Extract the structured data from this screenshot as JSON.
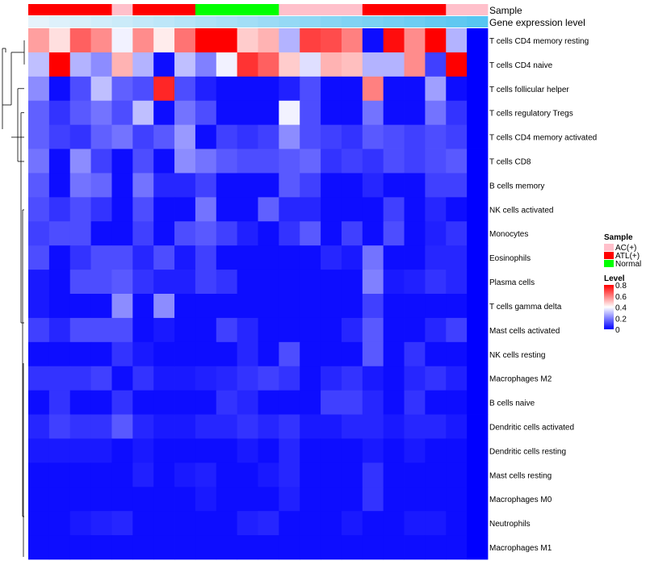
{
  "chart_data": {
    "type": "heatmap",
    "annotation_titles": {
      "sample": "Sample",
      "expression": "Gene expression level"
    },
    "sample_groups": [
      "ATL(+)",
      "ATL(+)",
      "ATL(+)",
      "ATL(+)",
      "AC(+)",
      "ATL(+)",
      "ATL(+)",
      "ATL(+)",
      "Normal",
      "Normal",
      "Normal",
      "Normal",
      "AC(+)",
      "AC(+)",
      "AC(+)",
      "AC(+)",
      "ATL(+)",
      "ATL(+)",
      "ATL(+)",
      "ATL(+)",
      "AC(+)",
      "AC(+)"
    ],
    "expression_level": [
      0.05,
      0.1,
      0.14,
      0.18,
      0.22,
      0.27,
      0.31,
      0.35,
      0.4,
      0.44,
      0.48,
      0.52,
      0.56,
      0.6,
      0.65,
      0.69,
      0.73,
      0.77,
      0.81,
      0.86,
      0.9,
      0.95
    ],
    "rows": [
      "T cells CD4 memory resting",
      "T cells CD4 naive",
      "T cells follicular helper",
      "T cells regulatory  Tregs",
      "T cells CD4 memory activated",
      "T cells CD8",
      "B cells memory",
      "NK cells activated",
      "Monocytes",
      "Eosinophils",
      "Plasma cells",
      "T cells gamma delta",
      "Mast cells activated",
      "NK cells resting",
      "Macrophages M2",
      "B cells naive",
      "Dendritic cells activated",
      "Dendritic cells resting",
      "Mast cells resting",
      "Macrophages M0",
      "Neutrophils",
      "Macrophages M1"
    ],
    "values": [
      [
        0.55,
        0.45,
        0.65,
        0.58,
        0.38,
        0.58,
        0.43,
        0.62,
        0.8,
        0.8,
        0.48,
        0.52,
        0.28,
        0.7,
        0.68,
        0.6,
        0.02,
        0.78,
        0.58,
        0.8,
        0.28,
        0
      ],
      [
        0.3,
        0.8,
        0.28,
        0.22,
        0.52,
        0.28,
        0.02,
        0.3,
        0.2,
        0.38,
        0.72,
        0.65,
        0.48,
        0.35,
        0.52,
        0.5,
        0.28,
        0.28,
        0.58,
        0.1,
        0.8,
        0
      ],
      [
        0.22,
        0.02,
        0.12,
        0.3,
        0.15,
        0.12,
        0.74,
        0.12,
        0.05,
        0.02,
        0.02,
        0.02,
        0.05,
        0.12,
        0.02,
        0.02,
        0.6,
        0.02,
        0.02,
        0.25,
        0.02,
        0
      ],
      [
        0.15,
        0.08,
        0.14,
        0.18,
        0.12,
        0.3,
        0.02,
        0.18,
        0.12,
        0.02,
        0.02,
        0.02,
        0.38,
        0.12,
        0.02,
        0.02,
        0.18,
        0.02,
        0.02,
        0.18,
        0.08,
        0
      ],
      [
        0.15,
        0.1,
        0.08,
        0.15,
        0.18,
        0.1,
        0.14,
        0.24,
        0.02,
        0.1,
        0.08,
        0.1,
        0.22,
        0.12,
        0.1,
        0.08,
        0.14,
        0.12,
        0.1,
        0.12,
        0.1,
        0
      ],
      [
        0.18,
        0.02,
        0.22,
        0.1,
        0.02,
        0.12,
        0.02,
        0.22,
        0.18,
        0.14,
        0.12,
        0.12,
        0.14,
        0.16,
        0.08,
        0.1,
        0.08,
        0.12,
        0.1,
        0.12,
        0.14,
        0
      ],
      [
        0.14,
        0.02,
        0.18,
        0.16,
        0.02,
        0.18,
        0.06,
        0.06,
        0.1,
        0.02,
        0.02,
        0.02,
        0.14,
        0.1,
        0.02,
        0.02,
        0.06,
        0.02,
        0.02,
        0.1,
        0.1,
        0
      ],
      [
        0.12,
        0.08,
        0.12,
        0.08,
        0.02,
        0.12,
        0.02,
        0.02,
        0.18,
        0.02,
        0.02,
        0.15,
        0.06,
        0.06,
        0.02,
        0.02,
        0.02,
        0.1,
        0.02,
        0.06,
        0.02,
        0
      ],
      [
        0.1,
        0.12,
        0.12,
        0.02,
        0.02,
        0.1,
        0.02,
        0.12,
        0.14,
        0.1,
        0.05,
        0.02,
        0.08,
        0.14,
        0.02,
        0.1,
        0.02,
        0.12,
        0.02,
        0.05,
        0.08,
        0
      ],
      [
        0.12,
        0.02,
        0.08,
        0.12,
        0.12,
        0.06,
        0.12,
        0.04,
        0.1,
        0.02,
        0.02,
        0.02,
        0.02,
        0.02,
        0.06,
        0.04,
        0.18,
        0.02,
        0.02,
        0.06,
        0.06,
        0
      ],
      [
        0.04,
        0.02,
        0.12,
        0.12,
        0.14,
        0.08,
        0.05,
        0.05,
        0.1,
        0.08,
        0.02,
        0.02,
        0.02,
        0.02,
        0.02,
        0.02,
        0.2,
        0.04,
        0.05,
        0.08,
        0.06,
        0
      ],
      [
        0.04,
        0.02,
        0.02,
        0.02,
        0.22,
        0.02,
        0.22,
        0.02,
        0.02,
        0.02,
        0.02,
        0.02,
        0.02,
        0.02,
        0.02,
        0.02,
        0.1,
        0.02,
        0.02,
        0.02,
        0.02,
        0
      ],
      [
        0.1,
        0.06,
        0.12,
        0.12,
        0.12,
        0.02,
        0.04,
        0.02,
        0.02,
        0.1,
        0.06,
        0.02,
        0.02,
        0.02,
        0.02,
        0.06,
        0.14,
        0.02,
        0.02,
        0.06,
        0.1,
        0
      ],
      [
        0.02,
        0.02,
        0.02,
        0.02,
        0.08,
        0.04,
        0.02,
        0.02,
        0.02,
        0.02,
        0.06,
        0.02,
        0.12,
        0.02,
        0.02,
        0.02,
        0.14,
        0.02,
        0.08,
        0.02,
        0.02,
        0
      ],
      [
        0.08,
        0.08,
        0.08,
        0.1,
        0.02,
        0.08,
        0.04,
        0.04,
        0.05,
        0.06,
        0.08,
        0.1,
        0.08,
        0.02,
        0.06,
        0.08,
        0.04,
        0.02,
        0.06,
        0.08,
        0.05,
        0
      ],
      [
        0.02,
        0.08,
        0.02,
        0.02,
        0.08,
        0.02,
        0.02,
        0.02,
        0.02,
        0.08,
        0.06,
        0.02,
        0.02,
        0.02,
        0.1,
        0.1,
        0.06,
        0.02,
        0.08,
        0.02,
        0.02,
        0
      ],
      [
        0.06,
        0.1,
        0.08,
        0.08,
        0.14,
        0.06,
        0.04,
        0.04,
        0.06,
        0.06,
        0.08,
        0.06,
        0.08,
        0.04,
        0.04,
        0.06,
        0.06,
        0.04,
        0.06,
        0.06,
        0.04,
        0
      ],
      [
        0.04,
        0.04,
        0.04,
        0.04,
        0.02,
        0.04,
        0.02,
        0.02,
        0.02,
        0.02,
        0.04,
        0.02,
        0.06,
        0.02,
        0.02,
        0.02,
        0.04,
        0.02,
        0.04,
        0.02,
        0.02,
        0
      ],
      [
        0.02,
        0.02,
        0.02,
        0.02,
        0.02,
        0.05,
        0.02,
        0.04,
        0.05,
        0.02,
        0.02,
        0.04,
        0.06,
        0.02,
        0.02,
        0.02,
        0.08,
        0.02,
        0.02,
        0.02,
        0.02,
        0
      ],
      [
        0.02,
        0.02,
        0.02,
        0.02,
        0.02,
        0.02,
        0.02,
        0.02,
        0.04,
        0.02,
        0.02,
        0.02,
        0.05,
        0.02,
        0.02,
        0.02,
        0.08,
        0.02,
        0.02,
        0.02,
        0.02,
        0
      ],
      [
        0.02,
        0.02,
        0.04,
        0.05,
        0.06,
        0.02,
        0.02,
        0.02,
        0.02,
        0.02,
        0.05,
        0.06,
        0.02,
        0.02,
        0.02,
        0.04,
        0.02,
        0.02,
        0.04,
        0.04,
        0.02,
        0
      ],
      [
        0.02,
        0.02,
        0.02,
        0.02,
        0.02,
        0.02,
        0.02,
        0.02,
        0.02,
        0.02,
        0.02,
        0.02,
        0.02,
        0.02,
        0.02,
        0.02,
        0.02,
        0.02,
        0.02,
        0.02,
        0.02,
        0
      ]
    ],
    "group_colors": {
      "AC(+)": "#FFC0CB",
      "ATL(+)": "#FF0000",
      "Normal": "#00FF00"
    },
    "legend": {
      "sample_title": "Sample",
      "sample_entries": [
        "AC(+)",
        "ATL(+)",
        "Normal"
      ],
      "level_title": "Level",
      "level_ticks": [
        0.8,
        0.6,
        0.4,
        0.2,
        0
      ]
    },
    "color_scale": {
      "low": "#0000FF",
      "mid": "#FFFFFF",
      "high": "#FF0000",
      "min": 0,
      "mid_value": 0.4,
      "max": 0.8
    },
    "expression_colors": {
      "low": "#EEF6FC",
      "high": "#4FC3F0"
    }
  }
}
